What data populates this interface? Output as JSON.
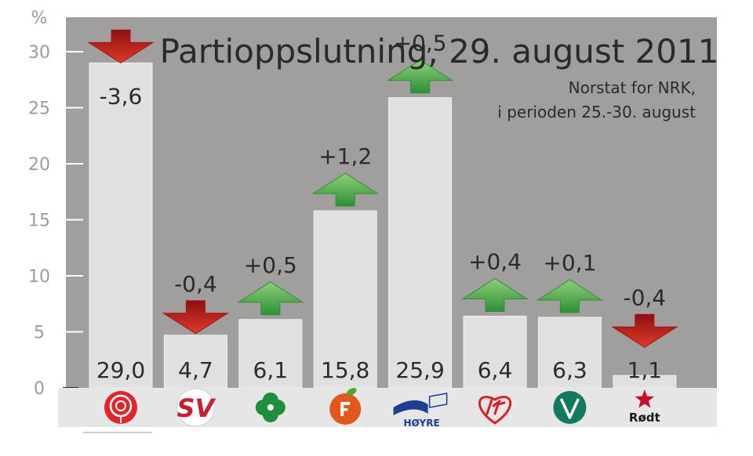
{
  "chart_data": {
    "type": "bar",
    "title": "Partioppslutning, 29. august 2011",
    "subtitle_lines": [
      "Norstat for NRK,",
      "i perioden 25.-30. august"
    ],
    "ylabel": "%",
    "ylim": [
      0,
      30
    ],
    "yticks": [
      "0",
      "5",
      "10",
      "15",
      "20",
      "25",
      "30"
    ],
    "grid": false,
    "categories": [
      "Ap",
      "SV",
      "Sp",
      "FrP",
      "Høyre",
      "KrF",
      "V",
      "Rødt"
    ],
    "values": [
      29.0,
      4.7,
      6.1,
      15.8,
      25.9,
      6.4,
      6.3,
      1.1
    ],
    "value_labels": [
      "29,0",
      "4,7",
      "6,1",
      "15,8",
      "25,9",
      "6,4",
      "6,3",
      "1,1"
    ],
    "changes": [
      -3.6,
      -0.4,
      0.5,
      1.2,
      0.5,
      0.4,
      0.1,
      -0.4
    ],
    "change_labels": [
      "-3,6",
      "-0,4",
      "+0,5",
      "+1,2",
      "+0,5",
      "+0,4",
      "+0,1",
      "-0,4"
    ],
    "logo_texts": {
      "SV": "SV",
      "Høyre": "HØYRE",
      "Rødt": "Rødt"
    },
    "colors": {
      "plot_bg": "#a09f9d",
      "bar": "#e0e0e0",
      "bar_stroke": "#f0f0f0",
      "logo_strip": "#e6e6e6",
      "text": "#2a2a2a",
      "axis_text": "#9b9b9b",
      "up_arrow": "#2e8f36",
      "up_arrow_light": "#7fc46a",
      "down_arrow": "#a31515",
      "down_arrow_light": "#d93a2a",
      "ap_red": "#e0252b",
      "sv_red": "#c7202f",
      "sp_green": "#1f8f3a",
      "frp_orange": "#e3571c",
      "hoyre_blue": "#1c3f8f",
      "krf_red": "#d8202b",
      "v_green": "#127a5e",
      "rodt_red": "#c8102e"
    }
  }
}
